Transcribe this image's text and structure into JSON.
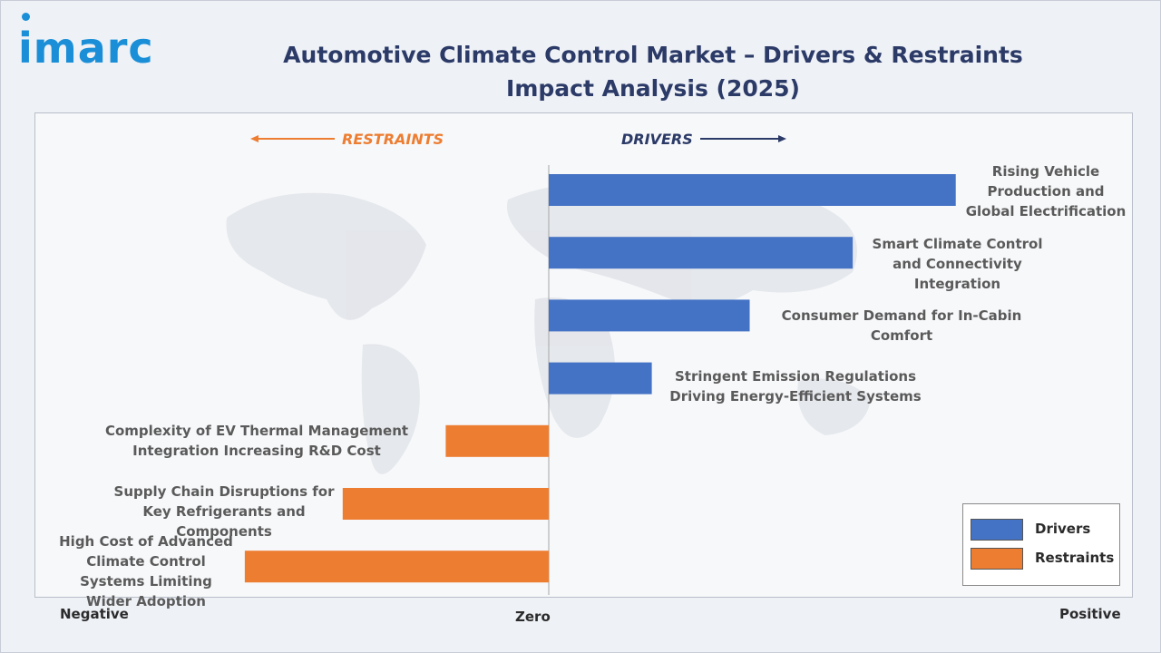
{
  "brand": {
    "logo_text": "imarc",
    "color": "#1a8fd8"
  },
  "title": "Automotive Climate Control Market – Drivers & Restraints Impact Analysis (2025)",
  "direction_labels": {
    "restraints": "RESTRAINTS",
    "drivers": "DRIVERS"
  },
  "axis_labels": {
    "negative": "Negative",
    "zero": "Zero",
    "positive": "Positive"
  },
  "legend": [
    {
      "name": "Drivers",
      "color": "#4472c4"
    },
    {
      "name": "Restraints",
      "color": "#ed7d31"
    }
  ],
  "chart_data": {
    "type": "bar",
    "orientation": "horizontal",
    "title": "Automotive Climate Control Market – Drivers & Restraints Impact Analysis (2025)",
    "xlim": [
      -1,
      1
    ],
    "series": [
      {
        "name": "Drivers",
        "color": "#4472c4",
        "items": [
          {
            "label": "Rising Vehicle Production and Global Electrification",
            "value": 0.79
          },
          {
            "label": "Smart Climate Control and Connectivity Integration",
            "value": 0.59
          },
          {
            "label": "Consumer Demand for In-Cabin Comfort",
            "value": 0.39
          },
          {
            "label": "Stringent Emission Regulations Driving Energy-Efficient Systems",
            "value": 0.2
          }
        ]
      },
      {
        "name": "Restraints",
        "color": "#ed7d31",
        "items": [
          {
            "label": "Complexity of EV Thermal Management Integration Increasing R&D Cost",
            "value": -0.2
          },
          {
            "label": "Supply Chain Disruptions for Key Refrigerants and Components",
            "value": -0.4
          },
          {
            "label": "High Cost of Advanced Climate Control Systems Limiting Wider Adoption",
            "value": -0.59
          }
        ]
      }
    ],
    "legend_position": "bottom-right",
    "grid": false
  }
}
